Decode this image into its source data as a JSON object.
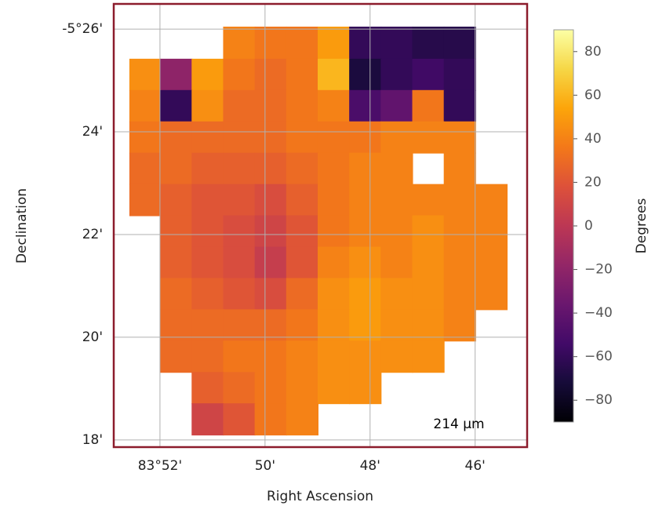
{
  "chart_data": {
    "type": "heatmap",
    "xlabel": "Right Ascension",
    "ylabel": "Declination",
    "annotation": "214 µm",
    "colorbar_label": "Degrees",
    "colormap": "inferno",
    "grid": true,
    "frame_color": "#8c1c2c",
    "xlim": [
      52.88,
      45.01
    ],
    "xticks": [
      {
        "value": 52,
        "label": "83°52'"
      },
      {
        "value": 50,
        "label": "50'"
      },
      {
        "value": 48,
        "label": "48'"
      },
      {
        "value": 46,
        "label": "46'"
      }
    ],
    "ylim": [
      17.86,
      26.49
    ],
    "yticks": [
      {
        "value": 26,
        "label": "-5°26'"
      },
      {
        "value": 24,
        "label": "24'"
      },
      {
        "value": 22,
        "label": "22'"
      },
      {
        "value": 20,
        "label": "20'"
      },
      {
        "value": 18,
        "label": "18'"
      }
    ],
    "clim": [
      -90,
      90
    ],
    "cticks": [
      80,
      60,
      40,
      20,
      0,
      {
        "value": -20,
        "label": "−20"
      },
      {
        "value": -40,
        "label": "−40"
      },
      {
        "value": -60,
        "label": "−60"
      },
      {
        "value": -80,
        "label": "−80"
      }
    ],
    "x": [
      52.28,
      51.69,
      51.09,
      50.49,
      49.89,
      49.29,
      48.69,
      48.09,
      47.49,
      46.89,
      46.29,
      45.69
    ],
    "y": [
      25.73,
      25.11,
      24.5,
      23.89,
      23.28,
      22.67,
      22.06,
      21.45,
      20.84,
      20.23,
      19.62,
      19.01,
      18.4
    ],
    "z": [
      [
        null,
        null,
        null,
        40,
        35,
        35,
        50,
        -60,
        -60,
        -65,
        -65,
        null
      ],
      [
        45,
        -20,
        50,
        35,
        30,
        35,
        60,
        -70,
        -60,
        -55,
        -60,
        null
      ],
      [
        40,
        -60,
        45,
        30,
        30,
        35,
        40,
        -50,
        -40,
        35,
        -60,
        null
      ],
      [
        35,
        30,
        30,
        30,
        30,
        35,
        35,
        35,
        40,
        40,
        40,
        null
      ],
      [
        30,
        30,
        25,
        25,
        25,
        30,
        35,
        40,
        40,
        null,
        40,
        null
      ],
      [
        30,
        25,
        20,
        20,
        15,
        25,
        35,
        40,
        40,
        40,
        40,
        40
      ],
      [
        null,
        25,
        20,
        15,
        10,
        20,
        35,
        40,
        40,
        45,
        40,
        40
      ],
      [
        null,
        25,
        20,
        15,
        5,
        20,
        40,
        45,
        40,
        45,
        40,
        40
      ],
      [
        null,
        30,
        25,
        20,
        15,
        30,
        45,
        50,
        45,
        45,
        40,
        40
      ],
      [
        null,
        30,
        30,
        30,
        30,
        35,
        45,
        50,
        45,
        45,
        40,
        null
      ],
      [
        null,
        30,
        30,
        35,
        35,
        40,
        45,
        45,
        45,
        45,
        null,
        null
      ],
      [
        null,
        null,
        25,
        30,
        35,
        40,
        45,
        45,
        null,
        null,
        null,
        null
      ],
      [
        null,
        null,
        10,
        20,
        35,
        40,
        null,
        null,
        null,
        null,
        null,
        null
      ]
    ]
  }
}
